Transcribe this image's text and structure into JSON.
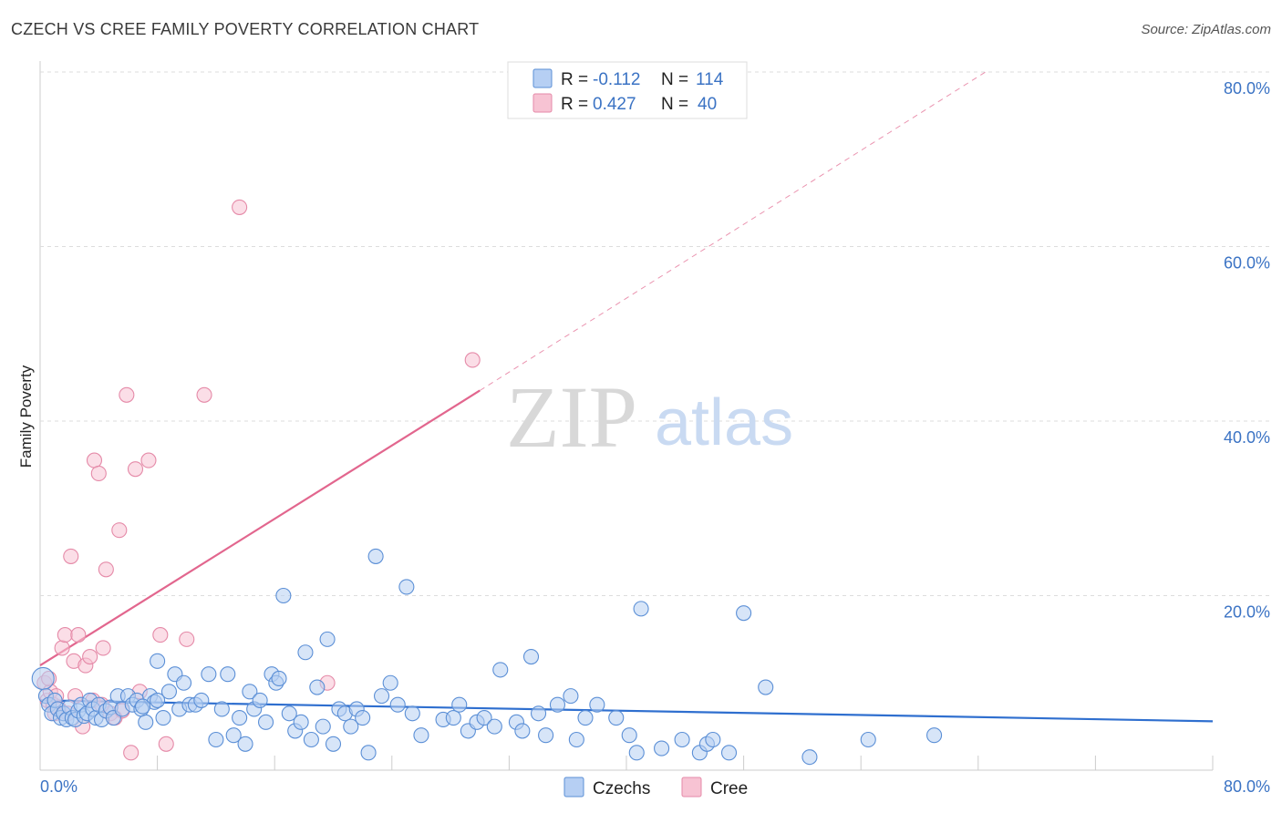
{
  "header": {
    "title": "CZECH VS CREE FAMILY POVERTY CORRELATION CHART",
    "source": "Source: ZipAtlas.com"
  },
  "watermark": {
    "zip": "ZIP",
    "atlas": "atlas"
  },
  "colors": {
    "czech_fill": "#b6cff3",
    "czech_stroke": "#5b8fd6",
    "czech_line": "#2f6fcf",
    "cree_fill": "#f7c3d3",
    "cree_stroke": "#e58aa8",
    "cree_line": "#e2668e",
    "grid": "#dddddd",
    "tick_label": "#3b73c4"
  },
  "stats_legend": [
    {
      "series": "Czechs",
      "r_label": "R =",
      "r_value": "-0.112",
      "n_label": "N =",
      "n_value": "114"
    },
    {
      "series": "Cree",
      "r_label": "R =",
      "r_value": "0.427",
      "n_label": "N =",
      "n_value": "40"
    }
  ],
  "chart_data": {
    "type": "scatter",
    "title": "CZECH VS CREE FAMILY POVERTY CORRELATION CHART",
    "xlabel": "",
    "ylabel": "Family Poverty",
    "xlim": [
      0,
      80
    ],
    "ylim": [
      0,
      80
    ],
    "x_tick_labels": {
      "min": "0.0%",
      "max": "80.0%"
    },
    "y_ticks": [
      20,
      40,
      60,
      80
    ],
    "y_tick_labels": [
      "20.0%",
      "40.0%",
      "60.0%",
      "80.0%"
    ],
    "grid": true,
    "legend_position": "bottom-center",
    "series": [
      {
        "name": "Czechs",
        "r": -0.112,
        "n": 114,
        "trend": {
          "x0": 0,
          "y0": 8.0,
          "x1": 80,
          "y1": 5.6
        },
        "points": [
          [
            0.2,
            10.5
          ],
          [
            0.4,
            8.5
          ],
          [
            0.6,
            7.5
          ],
          [
            0.8,
            6.5
          ],
          [
            1.0,
            8.0
          ],
          [
            1.2,
            7.0
          ],
          [
            1.4,
            6.0
          ],
          [
            1.6,
            6.5
          ],
          [
            1.8,
            5.8
          ],
          [
            2.0,
            7.2
          ],
          [
            2.2,
            6.0
          ],
          [
            2.4,
            5.8
          ],
          [
            2.6,
            6.8
          ],
          [
            2.8,
            7.5
          ],
          [
            3.0,
            6.2
          ],
          [
            3.2,
            6.5
          ],
          [
            3.4,
            8.0
          ],
          [
            3.6,
            7.0
          ],
          [
            3.8,
            6.0
          ],
          [
            4.0,
            7.5
          ],
          [
            4.2,
            5.8
          ],
          [
            4.5,
            6.8
          ],
          [
            4.8,
            7.2
          ],
          [
            5.0,
            6.0
          ],
          [
            5.3,
            8.5
          ],
          [
            5.6,
            7.0
          ],
          [
            6.0,
            8.5
          ],
          [
            6.3,
            7.5
          ],
          [
            6.6,
            8.0
          ],
          [
            6.9,
            7.0
          ],
          [
            7.2,
            5.5
          ],
          [
            7.5,
            8.5
          ],
          [
            7.8,
            7.8
          ],
          [
            8.0,
            12.5
          ],
          [
            8.4,
            6.0
          ],
          [
            8.8,
            9.0
          ],
          [
            9.2,
            11.0
          ],
          [
            9.5,
            7.0
          ],
          [
            9.8,
            10.0
          ],
          [
            10.2,
            7.5
          ],
          [
            10.6,
            7.5
          ],
          [
            11.0,
            8.0
          ],
          [
            11.5,
            11.0
          ],
          [
            12.0,
            3.5
          ],
          [
            12.4,
            7.0
          ],
          [
            12.8,
            11.0
          ],
          [
            13.2,
            4.0
          ],
          [
            13.6,
            6.0
          ],
          [
            14.0,
            3.0
          ],
          [
            14.3,
            9.0
          ],
          [
            14.6,
            7.0
          ],
          [
            15.0,
            8.0
          ],
          [
            15.4,
            5.5
          ],
          [
            15.8,
            11.0
          ],
          [
            16.1,
            10.0
          ],
          [
            16.3,
            10.5
          ],
          [
            16.6,
            20.0
          ],
          [
            17.0,
            6.5
          ],
          [
            17.4,
            4.5
          ],
          [
            17.8,
            5.5
          ],
          [
            18.1,
            13.5
          ],
          [
            18.5,
            3.5
          ],
          [
            18.9,
            9.5
          ],
          [
            19.3,
            5.0
          ],
          [
            19.6,
            15.0
          ],
          [
            20.0,
            3.0
          ],
          [
            20.4,
            7.0
          ],
          [
            20.8,
            6.5
          ],
          [
            21.2,
            5.0
          ],
          [
            21.6,
            7.0
          ],
          [
            22.0,
            6.0
          ],
          [
            22.4,
            2.0
          ],
          [
            22.9,
            24.5
          ],
          [
            23.3,
            8.5
          ],
          [
            23.9,
            10.0
          ],
          [
            24.4,
            7.5
          ],
          [
            25.0,
            21.0
          ],
          [
            25.4,
            6.5
          ],
          [
            26.0,
            4.0
          ],
          [
            27.5,
            5.8
          ],
          [
            28.2,
            6.0
          ],
          [
            28.6,
            7.5
          ],
          [
            29.2,
            4.5
          ],
          [
            29.8,
            5.5
          ],
          [
            30.3,
            6.0
          ],
          [
            31.0,
            5.0
          ],
          [
            31.4,
            11.5
          ],
          [
            32.5,
            5.5
          ],
          [
            32.9,
            4.5
          ],
          [
            33.5,
            13.0
          ],
          [
            34.0,
            6.5
          ],
          [
            34.5,
            4.0
          ],
          [
            35.3,
            7.5
          ],
          [
            36.2,
            8.5
          ],
          [
            36.6,
            3.5
          ],
          [
            37.2,
            6.0
          ],
          [
            38.0,
            7.5
          ],
          [
            39.3,
            6.0
          ],
          [
            40.2,
            4.0
          ],
          [
            40.7,
            2.0
          ],
          [
            41.0,
            18.5
          ],
          [
            42.4,
            2.5
          ],
          [
            43.8,
            3.5
          ],
          [
            45.0,
            2.0
          ],
          [
            45.5,
            3.0
          ],
          [
            45.9,
            3.5
          ],
          [
            47.0,
            2.0
          ],
          [
            48.0,
            18.0
          ],
          [
            49.5,
            9.5
          ],
          [
            52.5,
            1.5
          ],
          [
            56.5,
            3.5
          ],
          [
            61.0,
            4.0
          ],
          [
            8.0,
            8.0
          ],
          [
            7.0,
            7.3
          ]
        ]
      },
      {
        "name": "Cree",
        "r": 0.427,
        "n": 40,
        "trend": {
          "x0": 0,
          "y0": 12.0,
          "x1": 30,
          "y1": 43.5
        },
        "trend_extension": {
          "x0": 30,
          "y0": 43.5,
          "x1": 64.5,
          "y1": 80
        },
        "points": [
          [
            0.3,
            10.0
          ],
          [
            0.5,
            8.0
          ],
          [
            0.7,
            9.0
          ],
          [
            0.9,
            7.5
          ],
          [
            1.1,
            8.5
          ],
          [
            1.3,
            7.0
          ],
          [
            1.5,
            14.0
          ],
          [
            1.7,
            15.5
          ],
          [
            1.9,
            6.5
          ],
          [
            2.1,
            24.5
          ],
          [
            2.3,
            12.5
          ],
          [
            2.6,
            15.5
          ],
          [
            2.9,
            5.0
          ],
          [
            3.1,
            12.0
          ],
          [
            3.4,
            13.0
          ],
          [
            3.7,
            35.5
          ],
          [
            4.0,
            34.0
          ],
          [
            4.3,
            14.0
          ],
          [
            4.5,
            23.0
          ],
          [
            4.8,
            6.5
          ],
          [
            5.1,
            6.0
          ],
          [
            5.4,
            27.5
          ],
          [
            5.9,
            43.0
          ],
          [
            6.2,
            2.0
          ],
          [
            6.5,
            34.5
          ],
          [
            6.8,
            9.0
          ],
          [
            7.4,
            35.5
          ],
          [
            8.2,
            15.5
          ],
          [
            8.6,
            3.0
          ],
          [
            10.0,
            15.0
          ],
          [
            11.2,
            43.0
          ],
          [
            13.6,
            64.5
          ],
          [
            19.6,
            10.0
          ],
          [
            29.5,
            47.0
          ],
          [
            0.6,
            10.5
          ],
          [
            1.0,
            6.5
          ],
          [
            2.4,
            8.5
          ],
          [
            3.6,
            8.0
          ],
          [
            4.2,
            7.5
          ],
          [
            5.6,
            6.8
          ]
        ]
      }
    ]
  }
}
